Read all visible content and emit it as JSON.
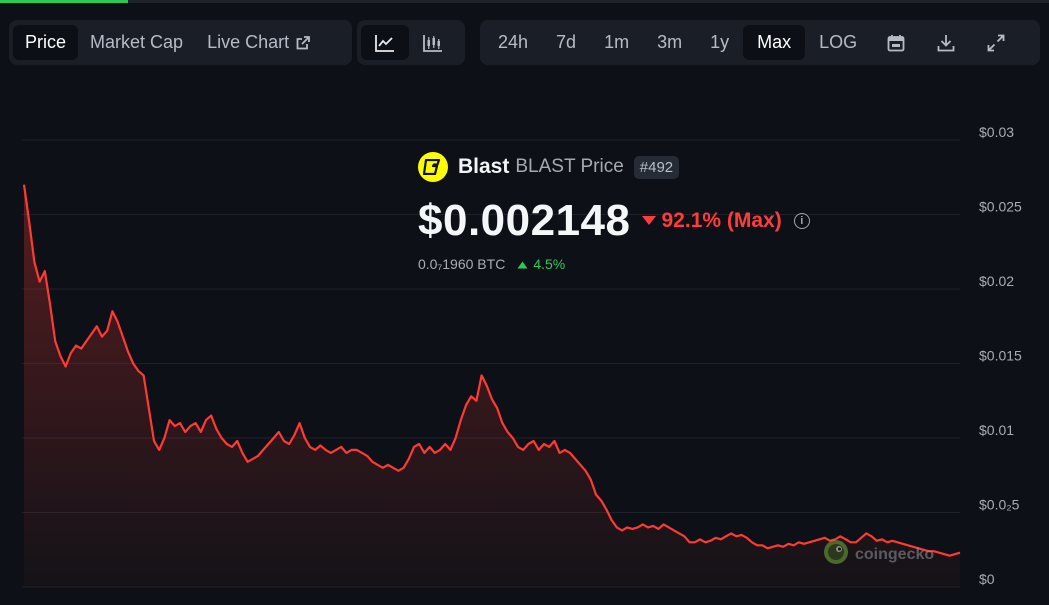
{
  "toolbar": {
    "metric_tabs": [
      {
        "label": "Price",
        "selected": true
      },
      {
        "label": "Market Cap",
        "selected": false
      },
      {
        "label": "Live Chart",
        "selected": false
      }
    ],
    "chart_type_icons": [
      "line-chart-icon",
      "candlestick-icon"
    ],
    "ranges": [
      {
        "label": "24h",
        "selected": false
      },
      {
        "label": "7d",
        "selected": false
      },
      {
        "label": "1m",
        "selected": false
      },
      {
        "label": "3m",
        "selected": false
      },
      {
        "label": "1y",
        "selected": false
      },
      {
        "label": "Max",
        "selected": true
      },
      {
        "label": "LOG",
        "selected": false
      }
    ],
    "tool_icons": [
      "calendar-icon",
      "download-icon",
      "fullscreen-icon"
    ]
  },
  "coin": {
    "name": "Blast",
    "symbol_label": "BLAST Price",
    "rank": "#492",
    "price": "$0.002148",
    "change": "92.1% (Max)",
    "btc_price": "0.0₇1960 BTC",
    "btc_change": "4.5%"
  },
  "watermark": "coingecko",
  "colors": {
    "line": "#ff3a33",
    "down": "#ff3b3b",
    "up": "#2fc85a",
    "logo_bg": "#fcfc03",
    "background": "#0d1117"
  },
  "chart_data": {
    "type": "area",
    "xlabel": "",
    "ylabel": "",
    "yticks": [
      "$0",
      "$0.0₂5",
      "$0.01",
      "$0.015",
      "$0.02",
      "$0.025",
      "$0.03"
    ],
    "ylim": [
      0,
      0.03
    ],
    "grid": true,
    "series": [
      {
        "values": [
          0.027,
          0.0245,
          0.0218,
          0.0205,
          0.0212,
          0.019,
          0.0165,
          0.0155,
          0.0148,
          0.0157,
          0.0162,
          0.016,
          0.0165,
          0.017,
          0.0175,
          0.0168,
          0.0172,
          0.0185,
          0.0178,
          0.0168,
          0.0158,
          0.015,
          0.0145,
          0.0142,
          0.012,
          0.0098,
          0.0092,
          0.01,
          0.0112,
          0.0108,
          0.011,
          0.0104,
          0.0108,
          0.011,
          0.0104,
          0.0112,
          0.0115,
          0.0106,
          0.01,
          0.0096,
          0.0094,
          0.0098,
          0.009,
          0.0084,
          0.0086,
          0.0088,
          0.0092,
          0.0096,
          0.01,
          0.0104,
          0.0098,
          0.0096,
          0.0102,
          0.011,
          0.01,
          0.0094,
          0.0092,
          0.0095,
          0.0092,
          0.009,
          0.0092,
          0.0094,
          0.009,
          0.0092,
          0.0092,
          0.009,
          0.0088,
          0.0084,
          0.0082,
          0.008,
          0.0082,
          0.008,
          0.0078,
          0.008,
          0.0086,
          0.0094,
          0.0096,
          0.009,
          0.0094,
          0.009,
          0.0092,
          0.0096,
          0.0092,
          0.01,
          0.0112,
          0.0122,
          0.0128,
          0.0125,
          0.0142,
          0.0135,
          0.0126,
          0.012,
          0.011,
          0.0104,
          0.01,
          0.0094,
          0.0092,
          0.0096,
          0.0098,
          0.0092,
          0.0096,
          0.0094,
          0.0098,
          0.009,
          0.0092,
          0.009,
          0.0086,
          0.0082,
          0.0078,
          0.0072,
          0.0062,
          0.0058,
          0.0052,
          0.0045,
          0.004,
          0.0038,
          0.004,
          0.0039,
          0.004,
          0.0042,
          0.004,
          0.0041,
          0.0039,
          0.0042,
          0.004,
          0.0038,
          0.0036,
          0.0034,
          0.003,
          0.003,
          0.0032,
          0.003,
          0.0031,
          0.0033,
          0.0032,
          0.0034,
          0.0036,
          0.0034,
          0.0035,
          0.0033,
          0.003,
          0.0028,
          0.0028,
          0.0026,
          0.0027,
          0.0028,
          0.0027,
          0.0029,
          0.0028,
          0.003,
          0.0029,
          0.003,
          0.0031,
          0.0032,
          0.0033,
          0.0031,
          0.0032,
          0.0034,
          0.0032,
          0.003,
          0.003,
          0.0033,
          0.0036,
          0.0034,
          0.0031,
          0.0032,
          0.003,
          0.0031,
          0.003,
          0.0029,
          0.0028,
          0.0027,
          0.0026,
          0.0025,
          0.0024,
          0.0024,
          0.0023,
          0.0022,
          0.0021,
          0.0022,
          0.0023
        ]
      }
    ]
  }
}
